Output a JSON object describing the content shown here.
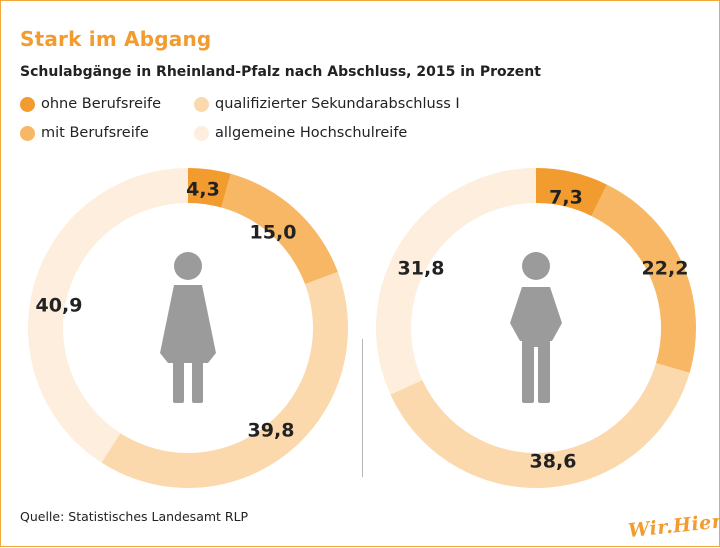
{
  "header": {
    "title": "Stark im Abgang",
    "subtitle": "Schulabgänge in Rheinland-Pfalz nach Abschluss, 2015 in Prozent"
  },
  "legend": {
    "items": [
      {
        "label": "ohne Berufsreife",
        "color": "#f29b2e"
      },
      {
        "label": "mit Berufsreife",
        "color": "#f7b764"
      },
      {
        "label": "qualifizierter Sekundarabschluss I",
        "color": "#fbd9ad"
      },
      {
        "label": "allgemeine Hochschulreife",
        "color": "#fdeedd"
      }
    ]
  },
  "footer": {
    "source": "Quelle: Statistisches Landesamt RLP",
    "brand": "Wir.Hier."
  },
  "chart_data": [
    {
      "type": "pie",
      "subject": "female-icon",
      "categories": [
        "ohne Berufsreife",
        "mit Berufsreife",
        "qualifizierter Sekundarabschluss I",
        "allgemeine Hochschulreife"
      ],
      "values": [
        4.3,
        15.0,
        39.8,
        40.9
      ],
      "labels": [
        "4,3",
        "15,0",
        "39,8",
        "40,9"
      ],
      "colors": [
        "#f29b2e",
        "#f7b764",
        "#fbd9ad",
        "#fdeedd"
      ]
    },
    {
      "type": "pie",
      "subject": "male-icon",
      "categories": [
        "ohne Berufsreife",
        "mit Berufsreife",
        "qualifizierter Sekundarabschluss I",
        "allgemeine Hochschulreife"
      ],
      "values": [
        7.3,
        22.2,
        38.6,
        31.8
      ],
      "labels": [
        "7,3",
        "22,2",
        "38,6",
        "31,8"
      ],
      "colors": [
        "#f29b2e",
        "#f7b764",
        "#fbd9ad",
        "#fdeedd"
      ]
    }
  ]
}
